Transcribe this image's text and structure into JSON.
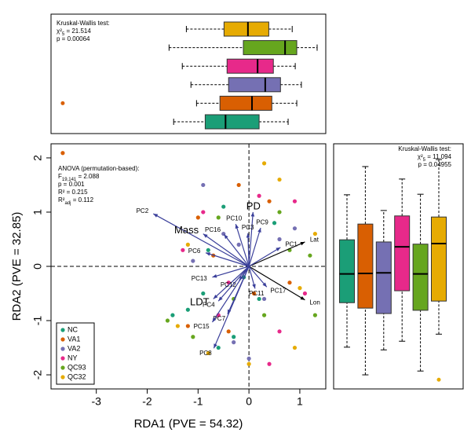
{
  "chart_data": [
    {
      "type": "boxplot",
      "orientation": "horizontal",
      "annotation": [
        {
          "text": "Kruskal-Wallis test:"
        },
        {
          "text": "χ²",
          "sub": "5",
          "rest": " = 21.514"
        },
        {
          "text": "p = 0.00064"
        }
      ],
      "boxes": [
        {
          "color": "#1B9E77",
          "low": -1.48,
          "q1": -0.86,
          "median": -0.46,
          "q3": 0.2,
          "high": 0.77,
          "outliers": []
        },
        {
          "color": "#D95F02",
          "low": -1.03,
          "q1": -0.57,
          "median": 0.06,
          "q3": 0.45,
          "high": 0.94,
          "outliers": [
            -3.66
          ]
        },
        {
          "color": "#7570B3",
          "low": -1.14,
          "q1": -0.4,
          "median": 0.32,
          "q3": 0.62,
          "high": 1.03,
          "outliers": []
        },
        {
          "color": "#E7298A",
          "low": -1.31,
          "q1": -0.43,
          "median": 0.17,
          "q3": 0.48,
          "high": 0.91,
          "outliers": []
        },
        {
          "color": "#66A61E",
          "low": -1.57,
          "q1": -0.11,
          "median": 0.71,
          "q3": 0.94,
          "high": 1.34,
          "outliers": []
        },
        {
          "color": "#E6AB02",
          "low": -1.23,
          "q1": -0.49,
          "median": -0.02,
          "q3": 0.39,
          "high": 0.85,
          "outliers": []
        }
      ]
    },
    {
      "type": "scatter",
      "xlabel": "RDA1 (PVE = 54.32)",
      "ylabel": "RDA2 (PVE = 32.85)",
      "xlim": [
        -3.89,
        1.51
      ],
      "ylim": [
        -2.26,
        2.26
      ],
      "xticks": [
        -3,
        -2,
        -1,
        0,
        1
      ],
      "yticks": [
        -2,
        -1,
        0,
        1,
        2
      ],
      "hline": 0,
      "vline": 0,
      "legend": "bottom left",
      "annotation": [
        {
          "text": "ANOVA (permutation-based):"
        },
        {
          "text": "F",
          "sub": "19,141",
          "rest": " = 2.088"
        },
        {
          "text": "p = 0.001"
        },
        {
          "text": "R² = 0.215"
        },
        {
          "text": "R²",
          "sub": "adj",
          "rest": " = 0.112"
        }
      ],
      "series": [
        {
          "name": "NC",
          "color": "#1B9E77",
          "x": [
            -0.9,
            -1.2,
            -0.5,
            -0.3,
            0.2,
            -1.5,
            -0.8,
            0.5,
            -0.6,
            -0.1
          ],
          "y": [
            -0.5,
            -0.8,
            1.1,
            -1.3,
            -0.6,
            -0.9,
            0.3,
            0.8,
            -1.5,
            -0.2
          ]
        },
        {
          "name": "VA1",
          "color": "#D95F02",
          "x": [
            -3.66,
            -1.0,
            -0.4,
            0.4,
            -1.2,
            0.8,
            -0.7,
            0.1,
            -0.2
          ],
          "y": [
            2.09,
            0.9,
            -1.2,
            1.2,
            -1.1,
            -0.3,
            0.2,
            -0.5,
            1.5
          ]
        },
        {
          "name": "VA2",
          "color": "#7570B3",
          "x": [
            -0.9,
            0.6,
            -0.3,
            0.3,
            -1.1,
            0.9,
            -0.5,
            0.0,
            -0.2
          ],
          "y": [
            1.5,
            0.5,
            -1.4,
            -0.6,
            0.1,
            0.7,
            0.6,
            -1.7,
            0.4
          ]
        },
        {
          "name": "NY",
          "color": "#E7298A",
          "x": [
            -1.3,
            0.9,
            -0.6,
            0.4,
            1.1,
            -0.9,
            0.2,
            -0.4,
            0.6
          ],
          "y": [
            0.3,
            1.2,
            -0.9,
            -1.8,
            -0.5,
            1.0,
            1.3,
            -0.3,
            -1.2
          ]
        },
        {
          "name": "QC93",
          "color": "#66A61E",
          "x": [
            -1.6,
            1.3,
            0.8,
            -0.6,
            0.3,
            1.2,
            -1.1,
            0.6,
            -0.3
          ],
          "y": [
            -1.0,
            -0.9,
            0.3,
            0.9,
            -0.9,
            0.2,
            -1.3,
            1.0,
            -0.6
          ]
        },
        {
          "name": "QC32",
          "color": "#E6AB02",
          "x": [
            0.3,
            -1.4,
            1.0,
            -0.8,
            0.6,
            1.3,
            -1.2,
            0.0,
            0.9
          ],
          "y": [
            1.9,
            -1.1,
            -0.4,
            -1.6,
            1.6,
            0.6,
            0.4,
            -1.8,
            -1.5
          ]
        }
      ],
      "vectors": [
        {
          "label": "PC2",
          "x": -1.88,
          "y": 0.97,
          "color": "#3a3f9a",
          "label_color": "#3a3f9a"
        },
        {
          "label": "Mass",
          "x": -0.9,
          "y": 0.6,
          "color": "#3a3f9a",
          "label_color": "#d7191c"
        },
        {
          "label": "PD",
          "x": 0.08,
          "y": 1.0,
          "color": "#3a3f9a",
          "label_color": "#d7191c"
        },
        {
          "label": "LDT",
          "x": -0.7,
          "y": -0.6,
          "color": "#3a3f9a",
          "label_color": "#d7191c"
        },
        {
          "label": "Lat",
          "x": 1.1,
          "y": 0.45,
          "color": "#000000",
          "label_color": "#000000"
        },
        {
          "label": "Lon",
          "x": 1.1,
          "y": -0.62,
          "color": "#000000",
          "label_color": "#000000"
        },
        {
          "label": "PC1",
          "x": 0.62,
          "y": 0.35,
          "color": "#3a3f9a",
          "label_color": "#3a3f9a"
        },
        {
          "label": "PC9",
          "x": 0.23,
          "y": 0.71,
          "color": "#3a3f9a",
          "label_color": "#3a3f9a"
        },
        {
          "label": "PC10",
          "x": -0.26,
          "y": 0.78,
          "color": "#3a3f9a",
          "label_color": "#3a3f9a"
        },
        {
          "label": "PC16",
          "x": -0.49,
          "y": 0.59,
          "color": "#3a3f9a",
          "label_color": "#3a3f9a"
        },
        {
          "label": "PC6",
          "x": -0.85,
          "y": 0.25,
          "color": "#3a3f9a",
          "label_color": "#3a3f9a"
        },
        {
          "label": "PC3",
          "x": -0.02,
          "y": 0.61,
          "color": "#3a3f9a",
          "label_color": "#3a3f9a"
        },
        {
          "label": "PC13",
          "x": -0.72,
          "y": -0.2,
          "color": "#3a3f9a",
          "label_color": "#3a3f9a"
        },
        {
          "label": "PC12",
          "x": -0.19,
          "y": -0.26,
          "color": "#3a3f9a",
          "label_color": "#3a3f9a"
        },
        {
          "label": "PC4",
          "x": -0.6,
          "y": -0.64,
          "color": "#3a3f9a",
          "label_color": "#3a3f9a"
        },
        {
          "label": "PC7",
          "x": -0.42,
          "y": -0.88,
          "color": "#3a3f9a",
          "label_color": "#3a3f9a"
        },
        {
          "label": "PC15",
          "x": -0.72,
          "y": -1.03,
          "color": "#3a3f9a",
          "label_color": "#3a3f9a"
        },
        {
          "label": "PC8",
          "x": -0.69,
          "y": -1.51,
          "color": "#3a3f9a",
          "label_color": "#3a3f9a"
        },
        {
          "label": "PC17",
          "x": 0.35,
          "y": -0.38,
          "color": "#3a3f9a",
          "label_color": "#3a3f9a"
        },
        {
          "label": "PC11",
          "x": 0.12,
          "y": -0.41,
          "color": "#3a3f9a",
          "label_color": "#3a3f9a"
        }
      ]
    },
    {
      "type": "boxplot",
      "orientation": "vertical",
      "annotation": [
        {
          "text": "Kruskal-Wallis test:"
        },
        {
          "text": "χ²",
          "sub": "5",
          "rest": " = 11.094"
        },
        {
          "text": "p = 0.04955"
        }
      ],
      "boxes": [
        {
          "color": "#1B9E77",
          "low": -1.49,
          "q1": -0.67,
          "median": -0.14,
          "q3": 0.49,
          "high": 1.32,
          "outliers": []
        },
        {
          "color": "#D95F02",
          "low": -2.0,
          "q1": -0.77,
          "median": -0.13,
          "q3": 0.78,
          "high": 1.84,
          "outliers": []
        },
        {
          "color": "#7570B3",
          "low": -1.54,
          "q1": -0.87,
          "median": -0.12,
          "q3": 0.45,
          "high": 1.03,
          "outliers": []
        },
        {
          "color": "#E7298A",
          "low": -1.38,
          "q1": -0.45,
          "median": 0.36,
          "q3": 0.93,
          "high": 1.61,
          "outliers": []
        },
        {
          "color": "#66A61E",
          "low": -1.93,
          "q1": -0.81,
          "median": -0.14,
          "q3": 0.41,
          "high": 1.33,
          "outliers": []
        },
        {
          "color": "#E6AB02",
          "low": -1.25,
          "q1": -0.64,
          "median": 0.42,
          "q3": 0.91,
          "high": 1.97,
          "outliers": [
            -2.09
          ]
        }
      ]
    }
  ]
}
